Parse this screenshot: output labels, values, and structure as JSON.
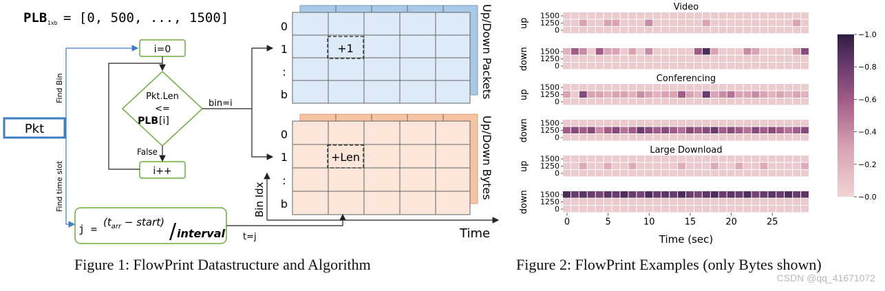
{
  "figure1": {
    "plb_label": "PLB",
    "plb_sub": "1xb",
    "plb_value": "= [0, 500, ..., 1500]",
    "pkt": "Pkt",
    "find_bin": "Find Bin",
    "find_time_slot": "Find time slot",
    "init": "i=0",
    "cond_line1": "Pkt.Len",
    "cond_line2": "<=",
    "cond_line3_bold": "PLB",
    "cond_line3_rest": "[i]",
    "false_label": "False",
    "incr": "i++",
    "bin_eq": "bin=i",
    "formula_lhs": "j =",
    "formula_num": "(t",
    "formula_num_sub": "arr",
    "formula_num_rest": " − start)",
    "formula_den": "interval",
    "t_eq": "t=j",
    "row_labels": [
      "0",
      "1",
      ":",
      "b"
    ],
    "cell_packets": "+1",
    "cell_bytes": "+Len",
    "side_packets": "Up/Down Packets",
    "side_bytes": "Up/Down Bytes",
    "bin_idx": "Bin Idx",
    "time": "Time",
    "colors": {
      "packets_fill": "#ddeaf7",
      "packets_back": "#a9c8e6",
      "bytes_fill": "#fbe6d9",
      "bytes_back": "#f6c3a4",
      "flow_green": "#6aaa3a",
      "pkt_blue": "#3f7fbf"
    }
  },
  "caption1": "Figure 1: FlowPrint Datastructure and Algorithm",
  "caption2": "Figure 2: FlowPrint Examples (only Bytes shown)",
  "watermark": "CSDN @qq_41671072",
  "chart_data": {
    "type": "heatmap",
    "xlabel": "Time (sec)",
    "x_ticks": [
      0,
      5,
      10,
      15,
      20,
      25
    ],
    "n_cols": 30,
    "colorbar": {
      "min": 0.0,
      "max": 1.0,
      "ticks": [
        "0.0",
        "0.2",
        "0.4",
        "0.6",
        "0.8",
        "1.0"
      ],
      "low_color": "#f0d3d3",
      "high_color": "#2d1e3e"
    },
    "panels": [
      {
        "title": "Video",
        "direction": "up",
        "rows": [
          "1500",
          "1250",
          "0"
        ],
        "values": [
          [
            0.05,
            0.05,
            0.05,
            0.05,
            0.05,
            0.05,
            0.05,
            0.05,
            0.05,
            0.05,
            0.05,
            0.05,
            0.05,
            0.05,
            0.05,
            0.05,
            0.05,
            0.05,
            0.05,
            0.05,
            0.05,
            0.05,
            0.05,
            0.05,
            0.05,
            0.05,
            0.05,
            0.05,
            0.05,
            0.05
          ],
          [
            0.05,
            0.05,
            0.3,
            0.05,
            0.05,
            0.3,
            0.3,
            0.05,
            0.05,
            0.05,
            0.4,
            0.05,
            0.05,
            0.05,
            0.05,
            0.05,
            0.05,
            0.3,
            0.05,
            0.05,
            0.05,
            0.05,
            0.05,
            0.05,
            0.05,
            0.05,
            0.05,
            0.05,
            0.3,
            0.05
          ],
          [
            0.05,
            0.05,
            0.05,
            0.05,
            0.05,
            0.05,
            0.05,
            0.05,
            0.05,
            0.05,
            0.05,
            0.05,
            0.05,
            0.05,
            0.05,
            0.05,
            0.05,
            0.05,
            0.05,
            0.05,
            0.05,
            0.05,
            0.05,
            0.05,
            0.05,
            0.05,
            0.05,
            0.05,
            0.05,
            0.05
          ]
        ]
      },
      {
        "title": "",
        "direction": "down",
        "rows": [
          "1500",
          "1250",
          "0"
        ],
        "values": [
          [
            0.2,
            0.6,
            0.4,
            0.05,
            0.6,
            0.3,
            0.3,
            0.05,
            0.3,
            0.05,
            0.4,
            0.05,
            0.05,
            0.05,
            0.05,
            0.05,
            0.6,
            0.9,
            0.3,
            0.05,
            0.05,
            0.05,
            0.4,
            0.3,
            0.05,
            0.05,
            0.05,
            0.05,
            0.3,
            0.7
          ],
          [
            0.05,
            0.05,
            0.05,
            0.05,
            0.05,
            0.05,
            0.05,
            0.05,
            0.05,
            0.05,
            0.05,
            0.05,
            0.05,
            0.05,
            0.05,
            0.05,
            0.05,
            0.05,
            0.05,
            0.05,
            0.05,
            0.05,
            0.05,
            0.05,
            0.05,
            0.05,
            0.05,
            0.05,
            0.05,
            0.05
          ],
          [
            0.05,
            0.05,
            0.05,
            0.05,
            0.05,
            0.05,
            0.05,
            0.05,
            0.05,
            0.05,
            0.05,
            0.05,
            0.05,
            0.05,
            0.05,
            0.05,
            0.05,
            0.05,
            0.05,
            0.05,
            0.05,
            0.05,
            0.05,
            0.05,
            0.05,
            0.05,
            0.05,
            0.05,
            0.05,
            0.05
          ]
        ]
      },
      {
        "title": "Conferencing",
        "direction": "up",
        "rows": [
          "1500",
          "1250",
          "0"
        ],
        "values": [
          [
            0.05,
            0.05,
            0.05,
            0.05,
            0.05,
            0.05,
            0.05,
            0.05,
            0.05,
            0.05,
            0.05,
            0.05,
            0.05,
            0.05,
            0.05,
            0.05,
            0.05,
            0.05,
            0.05,
            0.05,
            0.05,
            0.05,
            0.05,
            0.05,
            0.05,
            0.05,
            0.05,
            0.05,
            0.05,
            0.05
          ],
          [
            0.3,
            0.05,
            0.7,
            0.3,
            0.3,
            0.2,
            0.3,
            0.3,
            0.2,
            0.4,
            0.3,
            0.2,
            0.3,
            0.3,
            0.6,
            0.3,
            0.2,
            0.8,
            0.3,
            0.4,
            0.5,
            0.3,
            0.3,
            0.4,
            0.3,
            0.2,
            0.3,
            0.2,
            0.3,
            0.2
          ],
          [
            0.05,
            0.05,
            0.05,
            0.05,
            0.05,
            0.05,
            0.05,
            0.05,
            0.05,
            0.05,
            0.05,
            0.05,
            0.05,
            0.05,
            0.05,
            0.05,
            0.05,
            0.05,
            0.05,
            0.05,
            0.05,
            0.05,
            0.05,
            0.05,
            0.05,
            0.05,
            0.05,
            0.05,
            0.05,
            0.05
          ]
        ]
      },
      {
        "title": "",
        "direction": "down",
        "rows": [
          "1500",
          "1250",
          "0"
        ],
        "values": [
          [
            0.05,
            0.05,
            0.05,
            0.05,
            0.05,
            0.05,
            0.05,
            0.05,
            0.05,
            0.05,
            0.05,
            0.05,
            0.05,
            0.05,
            0.05,
            0.05,
            0.05,
            0.05,
            0.05,
            0.05,
            0.05,
            0.05,
            0.05,
            0.05,
            0.05,
            0.05,
            0.05,
            0.05,
            0.05,
            0.05
          ],
          [
            0.6,
            0.7,
            0.6,
            0.7,
            0.4,
            0.6,
            0.7,
            0.5,
            0.6,
            0.8,
            0.7,
            0.6,
            0.7,
            0.6,
            0.5,
            0.7,
            0.6,
            0.7,
            0.8,
            0.6,
            0.7,
            0.6,
            0.5,
            0.7,
            0.6,
            0.7,
            0.6,
            0.5,
            0.6,
            0.7
          ],
          [
            0.05,
            0.05,
            0.05,
            0.05,
            0.05,
            0.05,
            0.05,
            0.05,
            0.05,
            0.05,
            0.05,
            0.05,
            0.05,
            0.05,
            0.05,
            0.05,
            0.05,
            0.05,
            0.05,
            0.05,
            0.05,
            0.05,
            0.05,
            0.05,
            0.05,
            0.05,
            0.05,
            0.05,
            0.05,
            0.05
          ]
        ]
      },
      {
        "title": "Large Download",
        "direction": "up",
        "rows": [
          "1500",
          "1250",
          "0"
        ],
        "values": [
          [
            0.05,
            0.05,
            0.05,
            0.05,
            0.05,
            0.05,
            0.05,
            0.05,
            0.05,
            0.05,
            0.05,
            0.05,
            0.05,
            0.05,
            0.05,
            0.05,
            0.05,
            0.05,
            0.05,
            0.05,
            0.05,
            0.05,
            0.05,
            0.05,
            0.05,
            0.05,
            0.05,
            0.05,
            0.05,
            0.05
          ],
          [
            0.05,
            0.05,
            0.25,
            0.05,
            0.05,
            0.25,
            0.05,
            0.05,
            0.25,
            0.05,
            0.05,
            0.05,
            0.05,
            0.05,
            0.25,
            0.05,
            0.05,
            0.05,
            0.25,
            0.05,
            0.05,
            0.25,
            0.05,
            0.05,
            0.25,
            0.05,
            0.05,
            0.05,
            0.05,
            0.25
          ],
          [
            0.05,
            0.05,
            0.05,
            0.05,
            0.05,
            0.05,
            0.05,
            0.05,
            0.05,
            0.05,
            0.05,
            0.05,
            0.05,
            0.05,
            0.05,
            0.05,
            0.05,
            0.05,
            0.05,
            0.05,
            0.05,
            0.05,
            0.05,
            0.05,
            0.05,
            0.05,
            0.05,
            0.05,
            0.05,
            0.05
          ]
        ]
      },
      {
        "title": "",
        "direction": "down",
        "rows": [
          "1500",
          "1250",
          "0"
        ],
        "values": [
          [
            0.9,
            0.8,
            0.85,
            0.8,
            0.75,
            0.85,
            0.8,
            0.9,
            0.8,
            0.75,
            0.9,
            0.8,
            0.85,
            0.8,
            0.9,
            0.8,
            0.75,
            0.85,
            0.9,
            0.8,
            0.85,
            0.8,
            0.9,
            0.75,
            0.8,
            0.85,
            0.8,
            0.9,
            0.8,
            0.85
          ],
          [
            0.05,
            0.05,
            0.05,
            0.05,
            0.05,
            0.05,
            0.05,
            0.05,
            0.05,
            0.05,
            0.05,
            0.05,
            0.05,
            0.05,
            0.05,
            0.05,
            0.05,
            0.05,
            0.05,
            0.05,
            0.05,
            0.05,
            0.05,
            0.05,
            0.05,
            0.05,
            0.05,
            0.05,
            0.05,
            0.05
          ],
          [
            0.05,
            0.05,
            0.05,
            0.05,
            0.05,
            0.05,
            0.05,
            0.05,
            0.05,
            0.05,
            0.05,
            0.05,
            0.05,
            0.05,
            0.05,
            0.05,
            0.05,
            0.05,
            0.05,
            0.05,
            0.05,
            0.05,
            0.05,
            0.05,
            0.05,
            0.05,
            0.05,
            0.05,
            0.05,
            0.05
          ]
        ]
      }
    ]
  }
}
